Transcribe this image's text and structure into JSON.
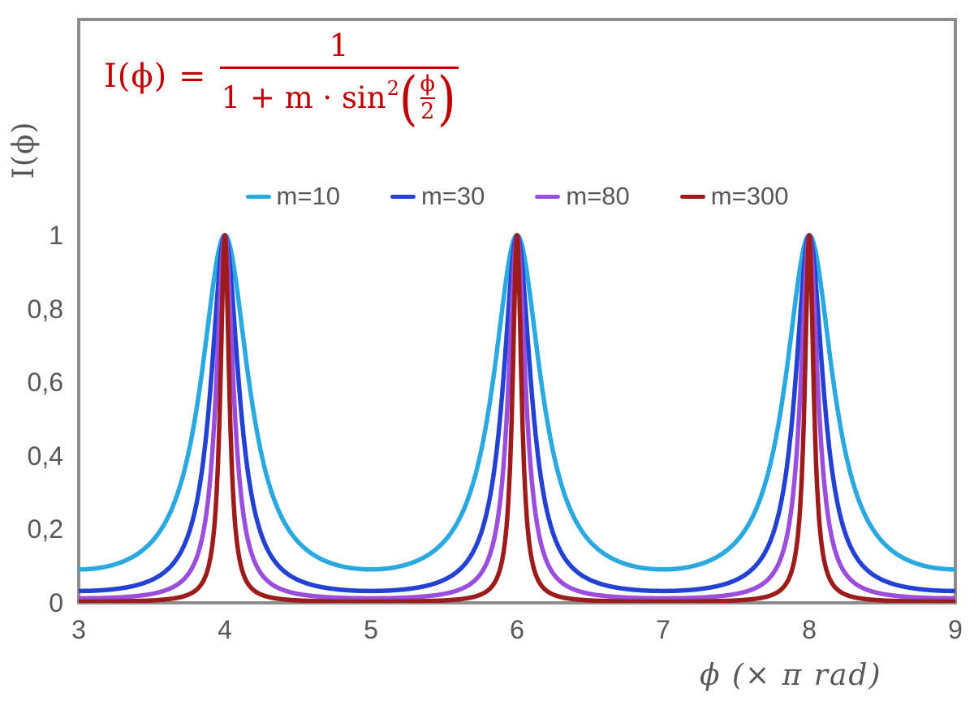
{
  "figure": {
    "background": "#FFFFFF",
    "frame_color": "#8C8C8C",
    "text_color": "#575757"
  },
  "formula": {
    "color": "#C00000",
    "lhs": "I(ϕ) =",
    "numerator": "1",
    "den_prefix": "1 + m · sin",
    "den_exponent": "2",
    "paren_open": "(",
    "inner_numerator": "ϕ",
    "inner_denominator": "2",
    "paren_close": ")"
  },
  "x_axis": {
    "title": "ϕ  (× π rad)",
    "tick_values": [
      3,
      4,
      5,
      6,
      7,
      8,
      9
    ],
    "tick_labels": [
      "3",
      "4",
      "5",
      "6",
      "7",
      "8",
      "9"
    ]
  },
  "y_axis": {
    "title": "I(ϕ)",
    "tick_values": [
      0,
      0.2,
      0.4,
      0.6,
      0.8,
      1
    ],
    "tick_labels": [
      "0",
      "0,2",
      "0,4",
      "0,6",
      "0,8",
      "1"
    ]
  },
  "chart_data": {
    "type": "line",
    "title": "",
    "function": "I(phi) = 1 / (1 + m * sin^2(phi/2))",
    "x_unit": "phi expressed in multiples of pi rad",
    "xlabel": "ϕ (× π rad)",
    "ylabel": "I(ϕ)",
    "xlim": [
      3,
      9
    ],
    "ylim": [
      0,
      1
    ],
    "grid": false,
    "legend_position": "top-center",
    "peaks": {
      "x": [
        4,
        6,
        8
      ],
      "I": 1
    },
    "minima": {
      "x": [
        3,
        5,
        7,
        9
      ]
    },
    "series": [
      {
        "name": "m=10",
        "m": 10,
        "color": "#29A9E0",
        "min_I": 0.0909
      },
      {
        "name": "m=30",
        "m": 30,
        "color": "#2342D4",
        "min_I": 0.0323
      },
      {
        "name": "m=80",
        "m": 80,
        "color": "#9B4EDC",
        "min_I": 0.0123
      },
      {
        "name": "m=300",
        "m": 300,
        "color": "#9E1B1B",
        "min_I": 0.0033
      }
    ]
  }
}
